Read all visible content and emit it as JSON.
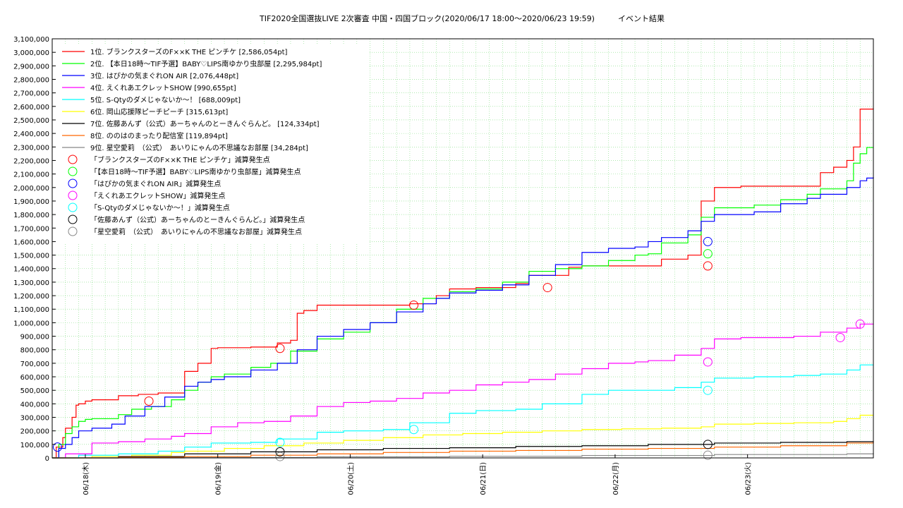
{
  "chart_data": {
    "type": "line",
    "title": "TIF2020全国選抜LIVE 2次審査 中国・四国ブロック(2020/06/17 18:00～2020/06/23 19:59)　　　イベント結果",
    "xlabel": "",
    "ylabel": "",
    "grid": true,
    "legend_position": "top-left",
    "x_range": [
      0,
      6.2
    ],
    "ylim": [
      0,
      3100000
    ],
    "y_ticks": [
      0,
      100000,
      200000,
      300000,
      400000,
      500000,
      600000,
      700000,
      800000,
      900000,
      1000000,
      1100000,
      1200000,
      1300000,
      1400000,
      1500000,
      1600000,
      1700000,
      1800000,
      1900000,
      2000000,
      2100000,
      2200000,
      2300000,
      2400000,
      2500000,
      2600000,
      2700000,
      2800000,
      2900000,
      3000000,
      3100000
    ],
    "y_tick_labels": [
      "0",
      "100,000",
      "200,000",
      "300,000",
      "400,000",
      "500,000",
      "600,000",
      "700,000",
      "800,000",
      "900,000",
      "1,000,000",
      "1,100,000",
      "1,200,000",
      "1,300,000",
      "1,400,000",
      "1,500,000",
      "1,600,000",
      "1,700,000",
      "1,800,000",
      "1,900,000",
      "2,000,000",
      "2,100,000",
      "2,200,000",
      "2,300,000",
      "2,400,000",
      "2,500,000",
      "2,600,000",
      "2,700,000",
      "2,800,000",
      "2,900,000",
      "3,000,000",
      "3,100,000"
    ],
    "x_ticks": [
      0.25,
      1.25,
      2.25,
      3.25,
      4.25,
      5.25
    ],
    "x_tick_labels": [
      "06/18(木)",
      "06/19(金)",
      "06/20(土)",
      "06/21(日)",
      "06/22(月)",
      "06/23(火)"
    ],
    "series": [
      {
        "name": "1位. ブランクスターズのF××K THE ピンチケ [2,586,054pt]",
        "color": "#ff0000",
        "x": [
          0,
          0.03,
          0.08,
          0.1,
          0.15,
          0.18,
          0.2,
          0.25,
          0.3,
          0.35,
          0.5,
          0.65,
          0.8,
          1.0,
          1.1,
          1.2,
          1.25,
          1.5,
          1.7,
          1.8,
          1.85,
          1.9,
          2.0,
          2.5,
          2.7,
          2.9,
          3.0,
          3.2,
          3.4,
          3.5,
          3.6,
          3.9,
          4.0,
          4.5,
          4.6,
          4.8,
          4.9,
          5.0,
          5.2,
          5.3,
          5.7,
          5.8,
          5.9,
          6.0,
          6.05,
          6.1,
          6.2
        ],
        "y": [
          0,
          80000,
          150000,
          220000,
          300000,
          390000,
          400000,
          420000,
          430000,
          430000,
          460000,
          470000,
          480000,
          640000,
          700000,
          810000,
          815000,
          820000,
          850000,
          870000,
          1070000,
          1090000,
          1130000,
          1130000,
          1140000,
          1200000,
          1250000,
          1260000,
          1260000,
          1290000,
          1350000,
          1410000,
          1420000,
          1420000,
          1470000,
          1500000,
          1900000,
          2000000,
          2010000,
          2010000,
          2010000,
          2110000,
          2150000,
          2200000,
          2300000,
          2580000,
          2586054
        ]
      },
      {
        "name": "2位. 【本日18時～TIF予選】BABY♡LIPS南ゆかり虫部屋 [2,295,984pt]",
        "color": "#00ff00",
        "x": [
          0,
          0.05,
          0.1,
          0.15,
          0.2,
          0.25,
          0.3,
          0.4,
          0.5,
          0.6,
          0.75,
          0.9,
          1.0,
          1.1,
          1.2,
          1.3,
          1.5,
          1.65,
          1.8,
          2.0,
          2.2,
          2.4,
          2.6,
          2.8,
          3.0,
          3.2,
          3.4,
          3.6,
          3.8,
          4.0,
          4.2,
          4.4,
          4.5,
          4.6,
          4.8,
          4.9,
          5.0,
          5.1,
          5.3,
          5.5,
          5.7,
          5.8,
          6.0,
          6.05,
          6.1,
          6.15,
          6.2
        ],
        "y": [
          0,
          100000,
          180000,
          230000,
          270000,
          285000,
          290000,
          290000,
          320000,
          360000,
          380000,
          430000,
          500000,
          560000,
          600000,
          620000,
          670000,
          700000,
          790000,
          880000,
          930000,
          1000000,
          1100000,
          1180000,
          1230000,
          1250000,
          1300000,
          1380000,
          1400000,
          1420000,
          1460000,
          1500000,
          1510000,
          1590000,
          1650000,
          1780000,
          1850000,
          1850000,
          1870000,
          1910000,
          1950000,
          1990000,
          2050000,
          2180000,
          2250000,
          2295984,
          2295984
        ]
      },
      {
        "name": "3位. はぴかの気まぐれON AIR [2,076,448pt]",
        "color": "#0000ff",
        "x": [
          0,
          0.05,
          0.1,
          0.15,
          0.2,
          0.3,
          0.45,
          0.55,
          0.7,
          0.85,
          1.0,
          1.1,
          1.2,
          1.3,
          1.5,
          1.7,
          1.85,
          2.0,
          2.2,
          2.4,
          2.6,
          2.8,
          2.9,
          3.0,
          3.2,
          3.4,
          3.6,
          3.8,
          4.0,
          4.2,
          4.4,
          4.5,
          4.6,
          4.8,
          4.9,
          5.0,
          5.3,
          5.5,
          5.7,
          5.8,
          6.0,
          6.1,
          6.15,
          6.2
        ],
        "y": [
          0,
          70000,
          100000,
          150000,
          200000,
          220000,
          250000,
          310000,
          380000,
          450000,
          530000,
          560000,
          580000,
          600000,
          650000,
          700000,
          800000,
          900000,
          950000,
          1000000,
          1080000,
          1140000,
          1180000,
          1220000,
          1240000,
          1280000,
          1350000,
          1430000,
          1520000,
          1550000,
          1560000,
          1600000,
          1630000,
          1680000,
          1750000,
          1800000,
          1820000,
          1880000,
          1920000,
          1950000,
          2000000,
          2050000,
          2070000,
          2076448
        ]
      },
      {
        "name": "4位. えくれあエクレットSHOW [990,655pt]",
        "color": "#ff00ff",
        "x": [
          0,
          0.1,
          0.3,
          0.5,
          0.7,
          0.9,
          1.0,
          1.2,
          1.4,
          1.6,
          1.8,
          2.0,
          2.2,
          2.4,
          2.6,
          2.8,
          3.0,
          3.2,
          3.4,
          3.6,
          3.8,
          4.0,
          4.2,
          4.4,
          4.5,
          4.7,
          4.9,
          5.0,
          5.2,
          5.4,
          5.6,
          5.8,
          6.0,
          6.1,
          6.2
        ],
        "y": [
          0,
          30000,
          110000,
          120000,
          140000,
          160000,
          180000,
          230000,
          260000,
          270000,
          310000,
          380000,
          410000,
          420000,
          440000,
          480000,
          500000,
          540000,
          560000,
          580000,
          620000,
          660000,
          700000,
          710000,
          720000,
          760000,
          810000,
          880000,
          890000,
          890000,
          900000,
          930000,
          960000,
          990000,
          990655
        ]
      },
      {
        "name": "5位. S-Qtyのダメじゃないか～！ [688,009pt]",
        "color": "#00ffff",
        "x": [
          0,
          0.2,
          0.5,
          0.8,
          1.0,
          1.2,
          1.5,
          1.7,
          2.0,
          2.2,
          2.5,
          2.7,
          3.0,
          3.2,
          3.5,
          3.7,
          4.0,
          4.2,
          4.5,
          4.7,
          4.9,
          5.0,
          5.3,
          5.6,
          5.8,
          6.0,
          6.1,
          6.2
        ],
        "y": [
          0,
          20000,
          30000,
          50000,
          80000,
          110000,
          115000,
          140000,
          190000,
          200000,
          210000,
          260000,
          330000,
          350000,
          360000,
          400000,
          470000,
          500000,
          500000,
          520000,
          560000,
          590000,
          600000,
          610000,
          620000,
          650000,
          688009,
          688009
        ]
      },
      {
        "name": "6位. 岡山応援隊ピーチピーチ [315,613pt]",
        "color": "#ffff00",
        "x": [
          0,
          0.3,
          0.6,
          0.9,
          1.0,
          1.3,
          1.6,
          1.9,
          2.2,
          2.5,
          2.8,
          3.1,
          3.4,
          3.7,
          4.0,
          4.3,
          4.6,
          4.9,
          5.0,
          5.3,
          5.6,
          5.9,
          6.0,
          6.1,
          6.2
        ],
        "y": [
          0,
          10000,
          20000,
          40000,
          50000,
          70000,
          90000,
          110000,
          130000,
          150000,
          170000,
          180000,
          190000,
          200000,
          210000,
          215000,
          220000,
          230000,
          250000,
          255000,
          260000,
          270000,
          290000,
          315613,
          315613
        ]
      },
      {
        "name": "7位. 佐藤あんず（公式）あーちゃんのとーきんぐらんど。 [124,334pt]",
        "color": "#000000",
        "x": [
          0,
          0.5,
          1.0,
          1.5,
          2.0,
          2.5,
          3.0,
          3.5,
          4.0,
          4.5,
          5.0,
          5.5,
          6.0,
          6.2
        ],
        "y": [
          0,
          10000,
          30000,
          45000,
          60000,
          70000,
          75000,
          85000,
          90000,
          100000,
          110000,
          115000,
          120000,
          124334
        ]
      },
      {
        "name": "8位. ののはのまったり配信室 [119,894pt]",
        "color": "#ff6600",
        "x": [
          0,
          0.5,
          1.0,
          1.5,
          2.0,
          2.5,
          3.0,
          3.5,
          4.0,
          4.5,
          5.0,
          5.5,
          6.0,
          6.2
        ],
        "y": [
          0,
          5000,
          10000,
          20000,
          30000,
          40000,
          50000,
          55000,
          65000,
          70000,
          80000,
          90000,
          110000,
          119894
        ]
      },
      {
        "name": "9位. 星空愛莉　（公式）　あいりにゃんの不思議なお部屋 [34,284pt]",
        "color": "#888888",
        "x": [
          0,
          1.0,
          2.0,
          3.0,
          4.0,
          5.0,
          6.0,
          6.2
        ],
        "y": [
          0,
          3000,
          8000,
          12000,
          18000,
          25000,
          30000,
          34284
        ]
      }
    ],
    "markers": [
      {
        "name": "「ブランクスターズのF××K THE ピンチケ」減算発生点",
        "color": "#ff0000",
        "x": [
          0.73,
          1.72,
          2.73,
          3.74,
          4.95
        ],
        "y": [
          420000,
          810000,
          1130000,
          1260000,
          1420000
        ]
      },
      {
        "name": "「【本日18時～TIF予選】BABY♡LIPS南ゆかり虫部屋」減算発生点",
        "color": "#00ff00",
        "x": [
          4.95
        ],
        "y": [
          1510000
        ]
      },
      {
        "name": "「はぴかの気まぐれON AIR」減算発生点",
        "color": "#0000ff",
        "x": [
          0.04,
          4.95
        ],
        "y": [
          80000,
          1600000
        ]
      },
      {
        "name": "「えくれあエクレットSHOW」減算発生点",
        "color": "#ff00ff",
        "x": [
          4.95,
          5.95,
          6.1
        ],
        "y": [
          710000,
          890000,
          990000
        ]
      },
      {
        "name": "「S-Qtyのダメじゃないか～！」減算発生点",
        "color": "#00ffff",
        "x": [
          1.72,
          2.73,
          4.95
        ],
        "y": [
          115000,
          210000,
          500000
        ]
      },
      {
        "name": "「佐藤あんず（公式）あーちゃんのとーきんぐらんど。」減算発生点",
        "color": "#000000",
        "x": [
          1.72,
          4.95
        ],
        "y": [
          45000,
          100000
        ]
      },
      {
        "name": "「星空愛莉　（公式）　あいりにゃんの不思議なお部屋」減算発生点",
        "color": "#888888",
        "x": [
          1.72,
          4.95
        ],
        "y": [
          10000,
          20000
        ]
      }
    ]
  }
}
